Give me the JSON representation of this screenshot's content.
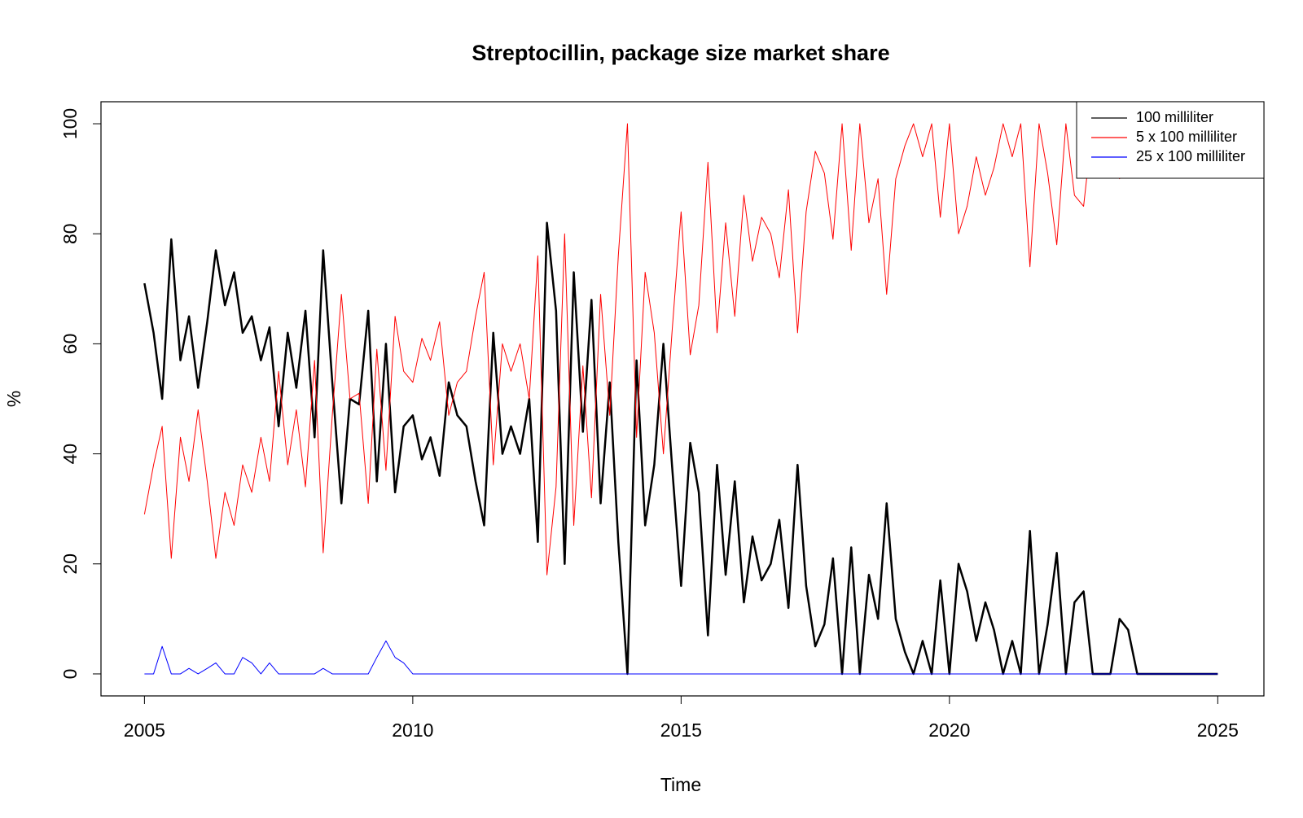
{
  "chart_data": {
    "type": "line",
    "title": "Streptocillin, package size market share",
    "x_label": "Time",
    "y_label": "%",
    "x": [
      2005,
      2005.17,
      2005.33,
      2005.5,
      2005.67,
      2005.83,
      2006,
      2006.17,
      2006.33,
      2006.5,
      2006.67,
      2006.83,
      2007,
      2007.17,
      2007.33,
      2007.5,
      2007.67,
      2007.83,
      2008,
      2008.17,
      2008.33,
      2008.5,
      2008.67,
      2008.83,
      2009,
      2009.17,
      2009.33,
      2009.5,
      2009.67,
      2009.83,
      2010,
      2010.17,
      2010.33,
      2010.5,
      2010.67,
      2010.83,
      2011,
      2011.17,
      2011.33,
      2011.5,
      2011.67,
      2011.83,
      2012,
      2012.17,
      2012.33,
      2012.5,
      2012.67,
      2012.83,
      2013,
      2013.17,
      2013.33,
      2013.5,
      2013.67,
      2013.83,
      2014,
      2014.17,
      2014.33,
      2014.5,
      2014.67,
      2014.83,
      2015,
      2015.17,
      2015.33,
      2015.5,
      2015.67,
      2015.83,
      2016,
      2016.17,
      2016.33,
      2016.5,
      2016.67,
      2016.83,
      2017,
      2017.17,
      2017.33,
      2017.5,
      2017.67,
      2017.83,
      2018,
      2018.17,
      2018.33,
      2018.5,
      2018.67,
      2018.83,
      2019,
      2019.17,
      2019.33,
      2019.5,
      2019.67,
      2019.83,
      2020,
      2020.17,
      2020.33,
      2020.5,
      2020.67,
      2020.83,
      2021,
      2021.17,
      2021.33,
      2021.5,
      2021.67,
      2021.83,
      2022,
      2022.17,
      2022.33,
      2022.5,
      2022.67,
      2022.83,
      2023,
      2023.17,
      2023.33,
      2023.5,
      2023.67,
      2023.83,
      2024,
      2024.17,
      2024.33,
      2024.5,
      2024.67,
      2024.83,
      2025
    ],
    "series": [
      {
        "name": "100 milliliter",
        "color": "#000000",
        "width": 2.5,
        "values": [
          71,
          62,
          50,
          79,
          57,
          65,
          52,
          64,
          77,
          67,
          73,
          62,
          65,
          57,
          63,
          45,
          62,
          52,
          66,
          43,
          77,
          53,
          31,
          50,
          49,
          66,
          35,
          60,
          33,
          45,
          47,
          39,
          43,
          36,
          53,
          47,
          45,
          35,
          27,
          62,
          40,
          45,
          40,
          50,
          24,
          82,
          66,
          20,
          73,
          44,
          68,
          31,
          53,
          24,
          0,
          57,
          27,
          38,
          60,
          38,
          16,
          42,
          33,
          7,
          38,
          18,
          35,
          13,
          25,
          17,
          20,
          28,
          12,
          38,
          16,
          5,
          9,
          21,
          0,
          23,
          0,
          18,
          10,
          31,
          10,
          4,
          0,
          6,
          0,
          17,
          0,
          20,
          15,
          6,
          13,
          8,
          0,
          6,
          0,
          26,
          0,
          9,
          22,
          0,
          13,
          15,
          0,
          0,
          0,
          10,
          8,
          0,
          0,
          0,
          0,
          0,
          0,
          0,
          0,
          0,
          0
        ]
      },
      {
        "name": "5 x 100 milliliter",
        "color": "#ff0000",
        "width": 1,
        "values": [
          29,
          38,
          45,
          21,
          43,
          35,
          48,
          35,
          21,
          33,
          27,
          38,
          33,
          43,
          35,
          55,
          38,
          48,
          34,
          57,
          22,
          47,
          69,
          50,
          51,
          31,
          59,
          37,
          65,
          55,
          53,
          61,
          57,
          64,
          47,
          53,
          55,
          65,
          73,
          38,
          60,
          55,
          60,
          50,
          76,
          18,
          34,
          80,
          27,
          56,
          32,
          69,
          47,
          76,
          100,
          43,
          73,
          62,
          40,
          62,
          84,
          58,
          67,
          93,
          62,
          82,
          65,
          87,
          75,
          83,
          80,
          72,
          88,
          62,
          84,
          95,
          91,
          79,
          100,
          77,
          100,
          82,
          90,
          69,
          90,
          96,
          100,
          94,
          100,
          83,
          100,
          80,
          85,
          94,
          87,
          92,
          100,
          94,
          100,
          74,
          100,
          91,
          78,
          100,
          87,
          85,
          100,
          100,
          100,
          90,
          92,
          null,
          null,
          null,
          null,
          null,
          null,
          null,
          null,
          null,
          null
        ]
      },
      {
        "name": "25 x 100 milliliter",
        "color": "#0000ff",
        "width": 1,
        "values": [
          0,
          0,
          5,
          0,
          0,
          1,
          0,
          1,
          2,
          0,
          0,
          3,
          2,
          0,
          2,
          0,
          0,
          0,
          0,
          0,
          1,
          0,
          0,
          0,
          0,
          0,
          3,
          6,
          3,
          2,
          0,
          0,
          0,
          0,
          0,
          0,
          0,
          0,
          0,
          0,
          0,
          0,
          0,
          0,
          0,
          0,
          0,
          0,
          0,
          0,
          0,
          0,
          0,
          0,
          0,
          0,
          0,
          0,
          0,
          0,
          0,
          0,
          0,
          0,
          0,
          0,
          0,
          0,
          0,
          0,
          0,
          0,
          0,
          0,
          0,
          0,
          0,
          0,
          0,
          0,
          0,
          0,
          0,
          0,
          0,
          0,
          0,
          0,
          0,
          0,
          0,
          0,
          0,
          0,
          0,
          0,
          0,
          0,
          0,
          0,
          0,
          0,
          0,
          0,
          0,
          0,
          0,
          0,
          0,
          0,
          0,
          0,
          0,
          0,
          0,
          0,
          0,
          0,
          0,
          0,
          0
        ]
      }
    ],
    "xlim": [
      2004.19,
      2025.86
    ],
    "ylim": [
      -4,
      104
    ],
    "xticks": [
      2005,
      2010,
      2015,
      2020,
      2025
    ],
    "yticks": [
      0,
      20,
      40,
      60,
      80,
      100
    ],
    "grid": false,
    "legend_position": "top-right"
  }
}
